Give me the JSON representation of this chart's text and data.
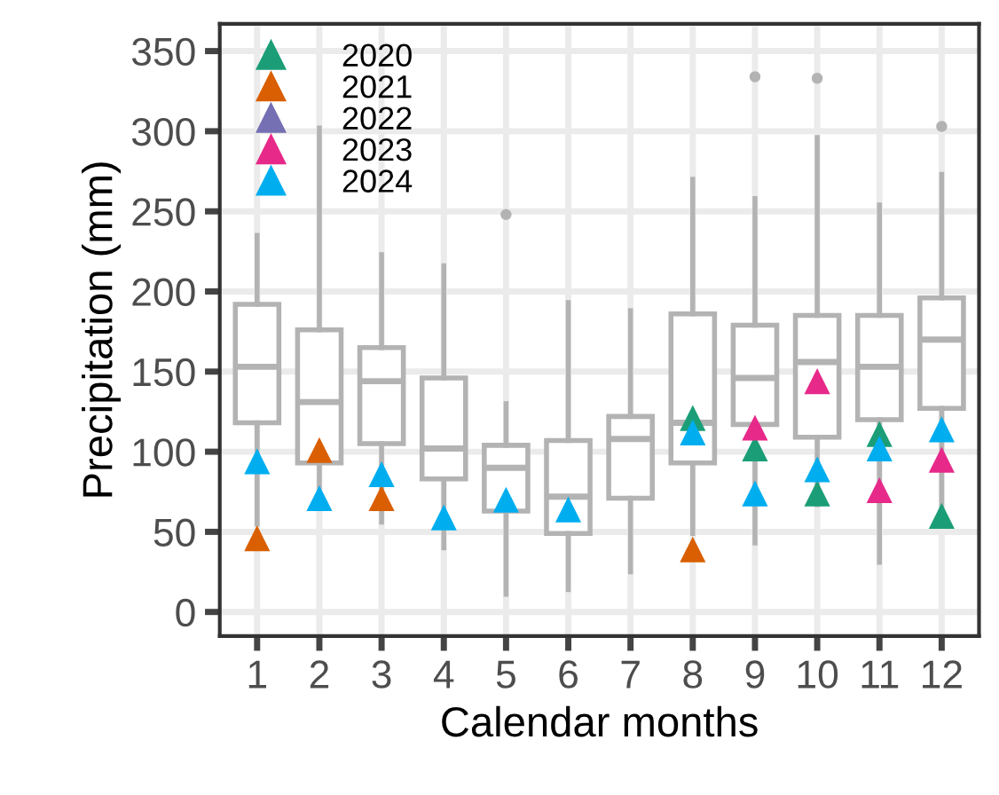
{
  "chart_data": {
    "type": "box",
    "xlabel": "Calendar months",
    "ylabel": "Precipitation (mm)",
    "categories": [
      "1",
      "2",
      "3",
      "4",
      "5",
      "6",
      "7",
      "8",
      "9",
      "10",
      "11",
      "12"
    ],
    "color": "#b3b3b3",
    "boxes": [
      {
        "low": 55,
        "q1": 118,
        "median": 153,
        "q3": 192,
        "high": 235
      },
      {
        "low": 67,
        "q1": 93,
        "median": 131,
        "q3": 176,
        "high": 302
      },
      {
        "low": 56,
        "q1": 105,
        "median": 144,
        "q3": 165,
        "high": 223
      },
      {
        "low": 40,
        "q1": 83,
        "median": 102,
        "q3": 146,
        "high": 216
      },
      {
        "low": 11,
        "q1": 63,
        "median": 90,
        "q3": 104,
        "high": 130,
        "outliers": [
          248
        ]
      },
      {
        "low": 14,
        "q1": 49,
        "median": 72,
        "q3": 107,
        "high": 193
      },
      {
        "low": 25,
        "q1": 71,
        "median": 108,
        "q3": 122,
        "high": 188
      },
      {
        "low": 49,
        "q1": 93,
        "median": 118,
        "q3": 186,
        "high": 270
      },
      {
        "low": 43,
        "q1": 117,
        "median": 146,
        "q3": 179,
        "high": 258,
        "outliers": [
          334
        ]
      },
      {
        "low": 67,
        "q1": 109,
        "median": 156,
        "q3": 185,
        "high": 296,
        "outliers": [
          333
        ]
      },
      {
        "low": 31,
        "q1": 120,
        "median": 153,
        "q3": 185,
        "high": 254
      },
      {
        "low": 60,
        "q1": 127,
        "median": 170,
        "q3": 196,
        "high": 273,
        "outliers": [
          303
        ]
      }
    ],
    "series": [
      {
        "name": "2020",
        "type": "scatter",
        "color": "#1b9e77",
        "x": [
          "1",
          "2",
          "3",
          "4",
          "5",
          "6",
          "7",
          "8",
          "9",
          "10",
          "11",
          "12"
        ],
        "values": [
          null,
          null,
          null,
          null,
          null,
          null,
          null,
          121,
          102,
          74,
          111,
          60
        ]
      },
      {
        "name": "2021",
        "type": "scatter",
        "color": "#d95f02",
        "x": [
          "1",
          "2",
          "3",
          "4",
          "5",
          "6",
          "7",
          "8",
          "9",
          "10",
          "11",
          "12"
        ],
        "values": [
          46,
          101,
          71,
          null,
          null,
          null,
          null,
          39,
          null,
          null,
          null,
          null
        ]
      },
      {
        "name": "2022",
        "type": "scatter",
        "color": "#7570b3",
        "x": [
          "1",
          "2",
          "3",
          "4",
          "5",
          "6",
          "7",
          "8",
          "9",
          "10",
          "11",
          "12"
        ],
        "values": [
          null,
          null,
          null,
          null,
          null,
          null,
          null,
          null,
          null,
          null,
          null,
          null
        ]
      },
      {
        "name": "2023",
        "type": "scatter",
        "color": "#e7298a",
        "x": [
          "1",
          "2",
          "3",
          "4",
          "5",
          "6",
          "7",
          "8",
          "9",
          "10",
          "11",
          "12"
        ],
        "values": [
          null,
          null,
          null,
          null,
          null,
          null,
          null,
          null,
          115,
          144,
          76,
          95
        ]
      },
      {
        "name": "2024",
        "type": "scatter",
        "color": "#00aef0",
        "x": [
          "1",
          "2",
          "3",
          "4",
          "5",
          "6",
          "7",
          "8",
          "9",
          "10",
          "11",
          "12"
        ],
        "values": [
          94,
          71,
          86,
          59,
          70,
          64,
          null,
          112,
          74,
          89,
          102,
          114
        ]
      }
    ],
    "ylim": [
      -15,
      367
    ],
    "yticks": [
      0,
      50,
      100,
      150,
      200,
      250,
      300,
      350
    ],
    "grid": true,
    "legend": "top left",
    "marker": "triangle"
  }
}
